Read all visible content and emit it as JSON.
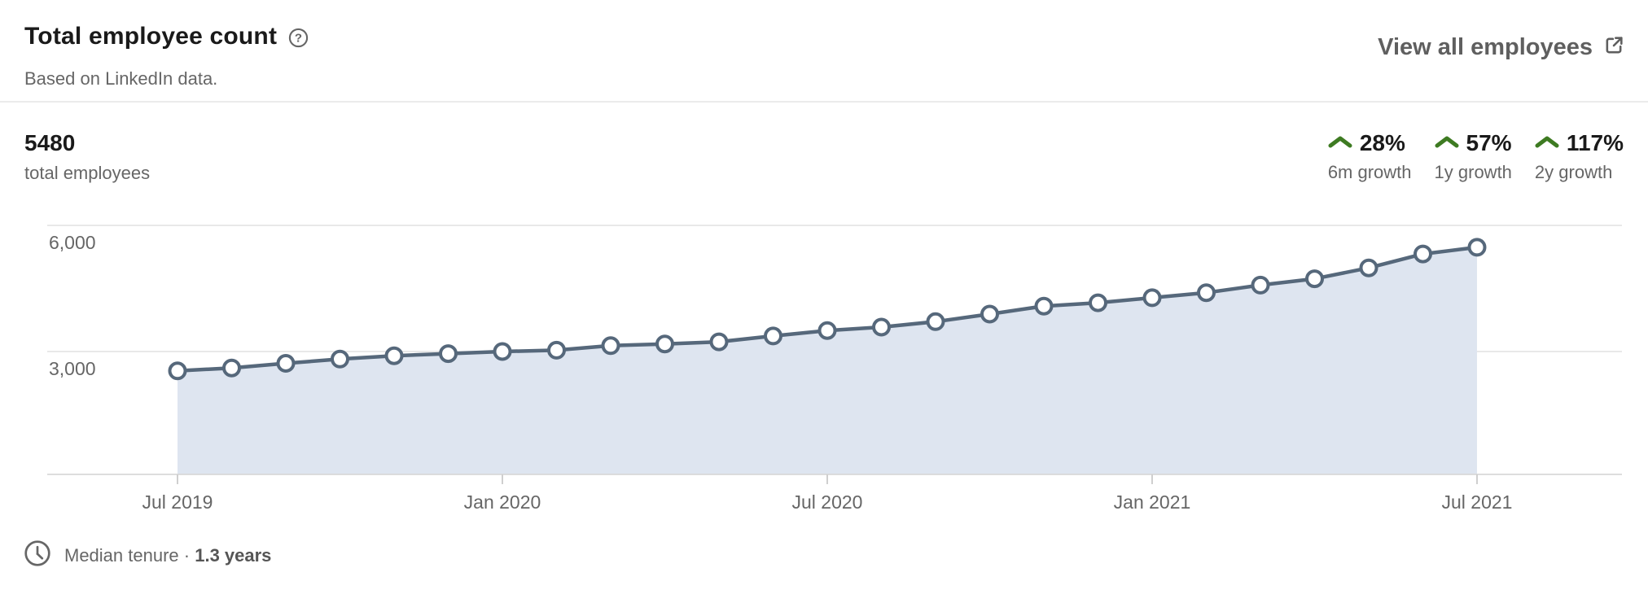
{
  "header": {
    "title": "Total employee count",
    "subtitle": "Based on LinkedIn data.",
    "view_all_label": "View all employees",
    "icons": {
      "help": "question-mark-circle-icon",
      "external_link": "external-link-icon"
    }
  },
  "summary": {
    "value": "5480",
    "label": "total employees"
  },
  "growth_stats": [
    {
      "percent": "28%",
      "label": "6m growth",
      "direction": "up"
    },
    {
      "percent": "57%",
      "label": "1y growth",
      "direction": "up"
    },
    {
      "percent": "117%",
      "label": "2y growth",
      "direction": "up"
    }
  ],
  "footer": {
    "icon": "clock-icon",
    "label": "Median tenure ·",
    "value": "1.3 years"
  },
  "colors": {
    "growth_green": "#3e7b22",
    "line": "#56687b",
    "area_fill": "#dee5f0",
    "gridline": "#e1e1e1",
    "axis_line": "#d8d8d8",
    "tick": "#cfcfcf",
    "axis_text": "#666666",
    "marker_fill": "#ffffff"
  },
  "chart_data": {
    "type": "area",
    "title": "Total employee count",
    "x": [
      "Jul 2019",
      "Aug 2019",
      "Sep 2019",
      "Oct 2019",
      "Nov 2019",
      "Dec 2019",
      "Jan 2020",
      "Feb 2020",
      "Mar 2020",
      "Apr 2020",
      "May 2020",
      "Jun 2020",
      "Jul 2020",
      "Aug 2020",
      "Sep 2020",
      "Oct 2020",
      "Nov 2020",
      "Dec 2020",
      "Jan 2021",
      "Feb 2021",
      "Mar 2021",
      "Apr 2021",
      "May 2021",
      "Jun 2021",
      "Jul 2021"
    ],
    "values": [
      2540,
      2610,
      2720,
      2820,
      2900,
      2950,
      3000,
      3030,
      3140,
      3180,
      3230,
      3370,
      3500,
      3580,
      3710,
      3890,
      4080,
      4160,
      4280,
      4400,
      4580,
      4730,
      4990,
      5320,
      5480
    ],
    "x_tick_labels": [
      "Jul 2019",
      "Jan 2020",
      "Jul 2020",
      "Jan 2021",
      "Jul 2021"
    ],
    "y_ticks": [
      6000,
      3000
    ],
    "y_tick_labels": [
      "6,000",
      "3,000"
    ],
    "ylim": [
      0,
      6600
    ],
    "xlabel": "",
    "ylabel": "",
    "grid": "horizontal",
    "legend": "none",
    "marker": "open-circle"
  }
}
